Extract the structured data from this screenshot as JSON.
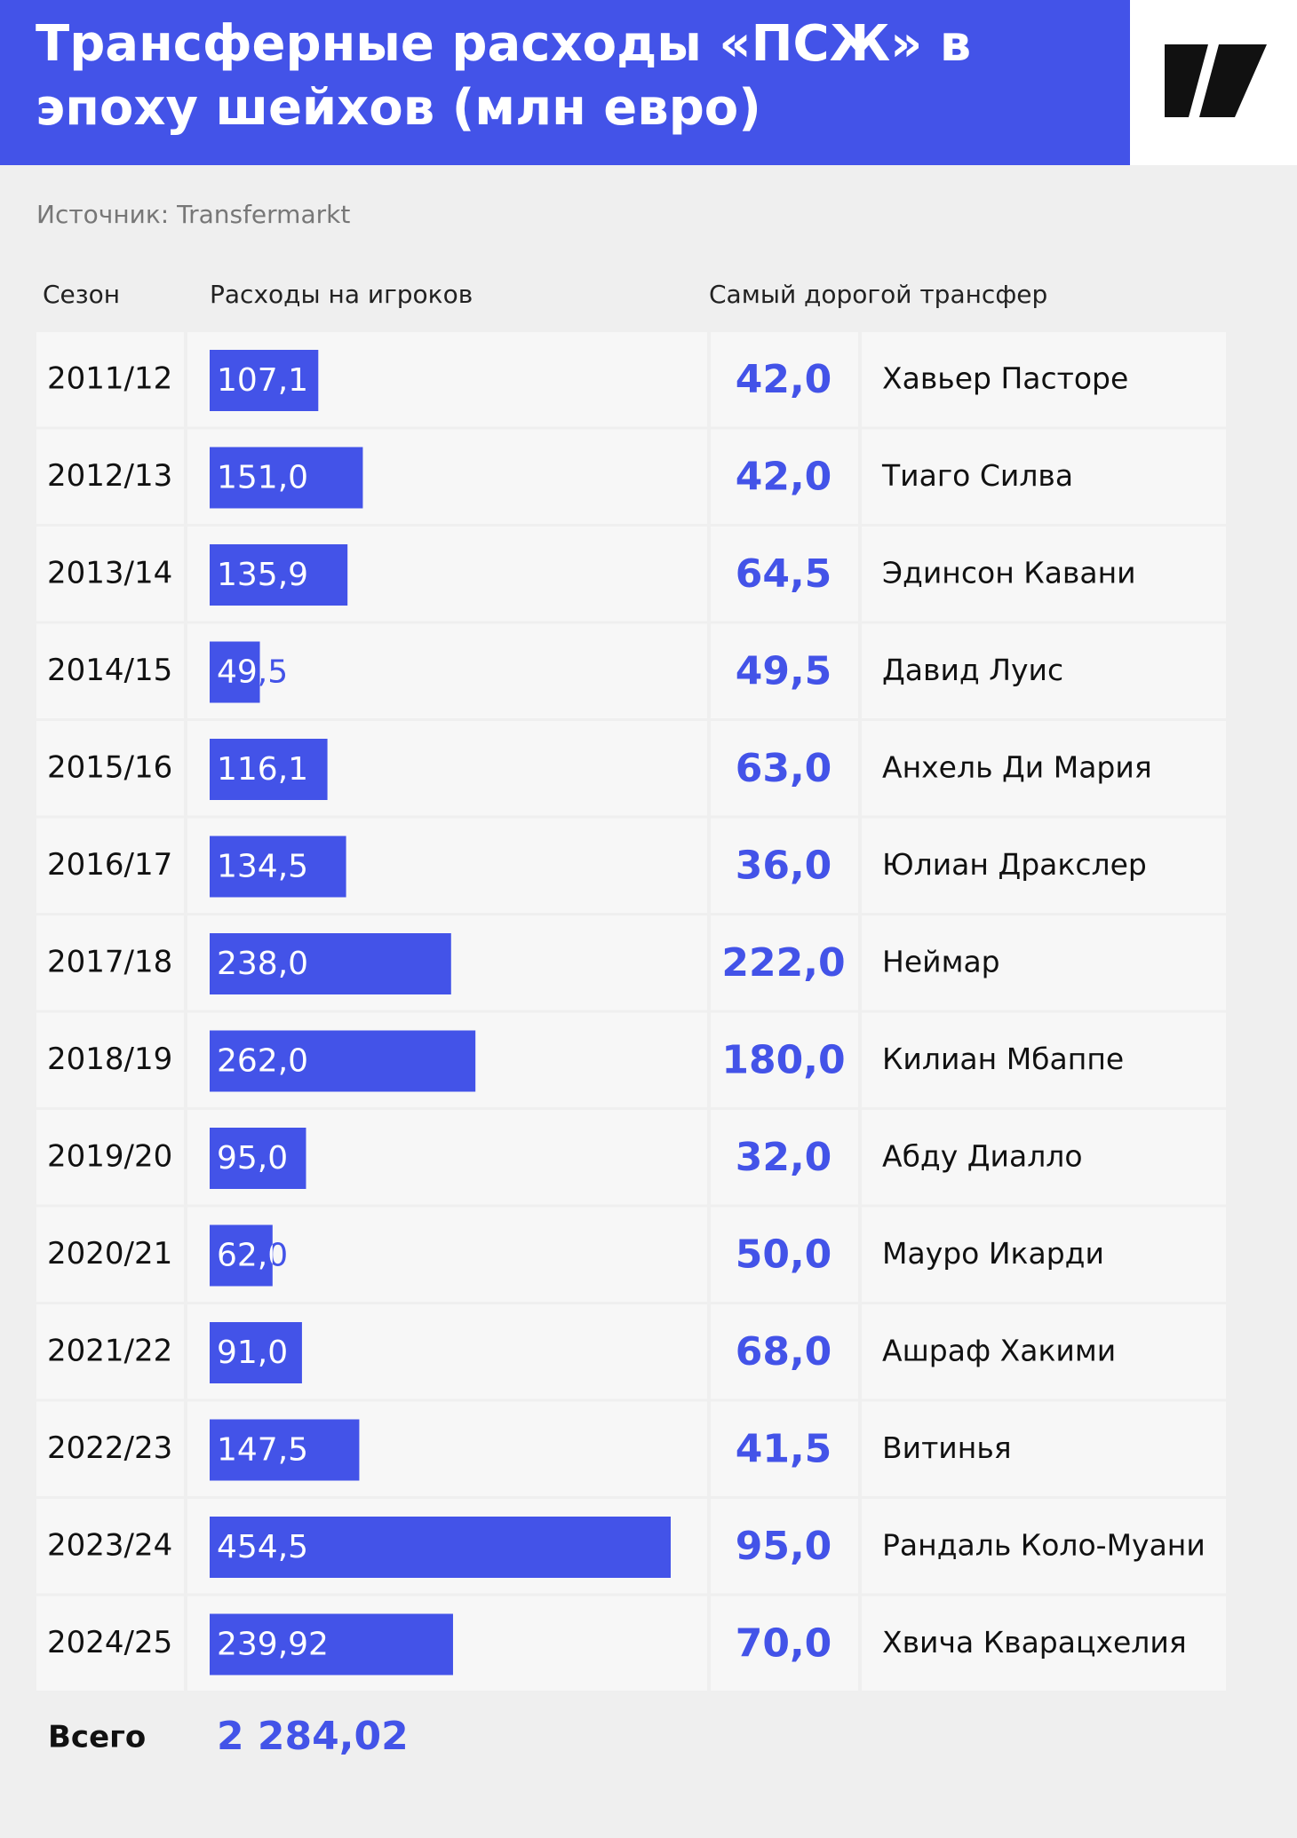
{
  "chart_data": {
    "type": "bar",
    "title": [
      "Трансферные расходы «ПСЖ» в",
      "эпоху шейхов (млн евро)"
    ],
    "source": "Источник: Transfermarkt",
    "columns": [
      "Сезон",
      "Расходы на игроков",
      "Самый дорогой трансфер"
    ],
    "categories": [
      "2011/12",
      "2012/13",
      "2013/14",
      "2014/15",
      "2015/16",
      "2016/17",
      "2017/18",
      "2018/19",
      "2019/20",
      "2020/21",
      "2021/22",
      "2022/23",
      "2023/24",
      "2024/25"
    ],
    "values": [
      107.1,
      151.0,
      135.9,
      49.5,
      116.1,
      134.5,
      238.0,
      262.0,
      95.0,
      62.0,
      91.0,
      147.5,
      454.5,
      239.92
    ],
    "value_labels": [
      "107,1",
      "151,0",
      "135,9",
      "49,5",
      "116,1",
      "134,5",
      "238,0",
      "262,0",
      "95,0",
      "62,0",
      "91,0",
      "147,5",
      "454,5",
      "239,92"
    ],
    "color": "#4353e8",
    "top_transfer": {
      "values": [
        42.0,
        42.0,
        64.5,
        49.5,
        63.0,
        36.0,
        222.0,
        180.0,
        32.0,
        50.0,
        68.0,
        41.5,
        95.0,
        70.0
      ],
      "value_labels": [
        "42,0",
        "42,0",
        "64,5",
        "49,5",
        "63,0",
        "36,0",
        "222,0",
        "180,0",
        "32,0",
        "50,0",
        "68,0",
        "41,5",
        "95,0",
        "70,0"
      ],
      "players": [
        "Хавьер Пасторе",
        "Тиаго Силва",
        "Эдинсон Кавани",
        "Давид Луис",
        "Анхель Ди Мария",
        "Юлиан Дракслер",
        "Неймар",
        "Килиан Мбаппе",
        "Абду Диалло",
        "Мауро Икарди",
        "Ашраф Хакими",
        "Витинья",
        "Рандаль Коло-Муани",
        "Хвича Кварацхелия"
      ]
    },
    "total": {
      "label": "Всего",
      "value": 2284.02,
      "value_label": "2 284,02"
    }
  }
}
